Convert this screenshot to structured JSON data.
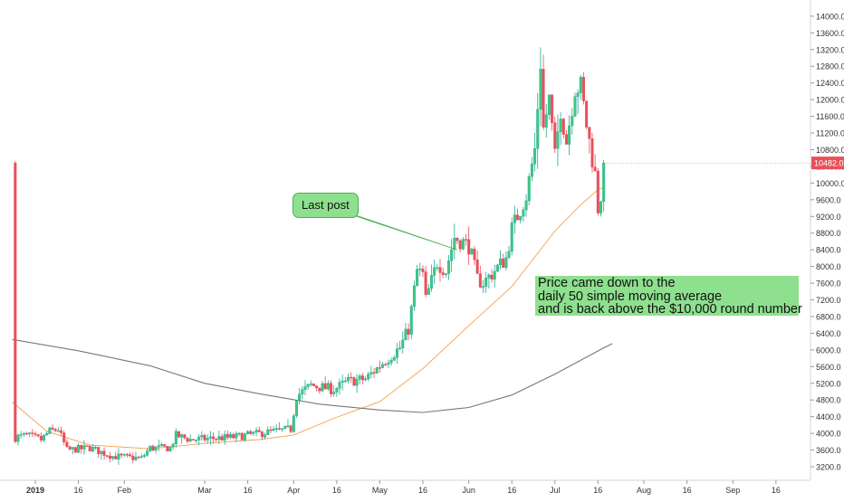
{
  "chart_data": {
    "type": "candlestick",
    "title": "",
    "colors": {
      "up": "#26a69a",
      "up_fill": "#3ec97b",
      "down": "#e8505b",
      "ma50": "#f5a24b",
      "ma200": "#777777",
      "price_tag": "#e8505b",
      "annotation_fill": "#8ee08e"
    },
    "y_axis": {
      "side": "right",
      "ylim": [
        3000,
        14200
      ],
      "ticks": [
        3200,
        3600,
        4000,
        4400,
        4800,
        5200,
        5600,
        6000,
        6400,
        6800,
        7200,
        7600,
        8000,
        8400,
        8800,
        9200,
        9600,
        10000,
        10400,
        10800,
        11200,
        11600,
        12000,
        12400,
        12800,
        13200,
        13600,
        14000
      ],
      "tick_labels": [
        "3200.0",
        "3600.0",
        "4000.0",
        "4400.0",
        "4800.0",
        "5200.0",
        "5600.0",
        "6000.0",
        "6400.0",
        "6800.0",
        "7200.0",
        "7600.0",
        "8000.0",
        "8400.0",
        "8800.0",
        "9200.0",
        "9600.0",
        "10000.0",
        "10400.0",
        "10800.0",
        "11200.0",
        "11600.0",
        "12000.0",
        "12400.0",
        "12800.0",
        "13200.0",
        "13600.0",
        "14000.0"
      ]
    },
    "x_axis": {
      "labels": [
        {
          "label": "2019",
          "date": "2019-01-01",
          "bold": true
        },
        {
          "label": "16",
          "date": "2019-01-16"
        },
        {
          "label": "Feb",
          "date": "2019-02-01"
        },
        {
          "label": "Mar",
          "date": "2019-03-01"
        },
        {
          "label": "16",
          "date": "2019-03-16"
        },
        {
          "label": "Apr",
          "date": "2019-04-01"
        },
        {
          "label": "16",
          "date": "2019-04-16"
        },
        {
          "label": "May",
          "date": "2019-05-01"
        },
        {
          "label": "16",
          "date": "2019-05-16"
        },
        {
          "label": "Jun",
          "date": "2019-06-01"
        },
        {
          "label": "16",
          "date": "2019-06-16"
        },
        {
          "label": "Jul",
          "date": "2019-07-01"
        },
        {
          "label": "16",
          "date": "2019-07-16"
        },
        {
          "label": "Aug",
          "date": "2019-08-01"
        },
        {
          "label": "16",
          "date": "2019-08-16"
        },
        {
          "label": "Sep",
          "date": "2019-09-01"
        },
        {
          "label": "16",
          "date": "2019-09-16"
        }
      ]
    },
    "last_price": {
      "label": "10482.0",
      "value": 10482
    },
    "price_path": [
      {
        "date": "2018-12-25",
        "price": 3900
      },
      {
        "date": "2018-12-29",
        "price": 3950
      },
      {
        "date": "2019-01-03",
        "price": 3850
      },
      {
        "date": "2019-01-06",
        "price": 4050
      },
      {
        "date": "2019-01-09",
        "price": 4100
      },
      {
        "date": "2019-01-12",
        "price": 3600
      },
      {
        "date": "2019-01-20",
        "price": 3650
      },
      {
        "date": "2019-01-28",
        "price": 3450
      },
      {
        "date": "2019-02-07",
        "price": 3400
      },
      {
        "date": "2019-02-10",
        "price": 3650
      },
      {
        "date": "2019-02-17",
        "price": 3650
      },
      {
        "date": "2019-02-19",
        "price": 3950
      },
      {
        "date": "2019-02-24",
        "price": 3850
      },
      {
        "date": "2019-03-10",
        "price": 3900
      },
      {
        "date": "2019-03-31",
        "price": 4100
      },
      {
        "date": "2019-04-02",
        "price": 4900
      },
      {
        "date": "2019-04-07",
        "price": 5150
      },
      {
        "date": "2019-04-15",
        "price": 5050
      },
      {
        "date": "2019-04-20",
        "price": 5250
      },
      {
        "date": "2019-04-26",
        "price": 5300
      },
      {
        "date": "2019-05-03",
        "price": 5750
      },
      {
        "date": "2019-05-08",
        "price": 6050
      },
      {
        "date": "2019-05-11",
        "price": 6500
      },
      {
        "date": "2019-05-14",
        "price": 7900
      },
      {
        "date": "2019-05-16",
        "price": 7800
      },
      {
        "date": "2019-05-17",
        "price": 7200
      },
      {
        "date": "2019-05-21",
        "price": 8100
      },
      {
        "date": "2019-05-24",
        "price": 7900
      },
      {
        "date": "2019-05-27",
        "price": 8700
      },
      {
        "date": "2019-06-01",
        "price": 8500
      },
      {
        "date": "2019-06-04",
        "price": 7700
      },
      {
        "date": "2019-06-06",
        "price": 7600
      },
      {
        "date": "2019-06-10",
        "price": 7900
      },
      {
        "date": "2019-06-14",
        "price": 8200
      },
      {
        "date": "2019-06-16",
        "price": 8900
      },
      {
        "date": "2019-06-21",
        "price": 9700
      },
      {
        "date": "2019-06-24",
        "price": 10800
      },
      {
        "date": "2019-06-26",
        "price": 12900
      },
      {
        "date": "2019-06-27",
        "price": 11300
      },
      {
        "date": "2019-06-29",
        "price": 12000
      },
      {
        "date": "2019-07-01",
        "price": 10600
      },
      {
        "date": "2019-07-03",
        "price": 11800
      },
      {
        "date": "2019-07-05",
        "price": 11000
      },
      {
        "date": "2019-07-08",
        "price": 12300
      },
      {
        "date": "2019-07-10",
        "price": 12300
      },
      {
        "date": "2019-07-12",
        "price": 11400
      },
      {
        "date": "2019-07-15",
        "price": 10200
      },
      {
        "date": "2019-07-16",
        "price": 9400
      },
      {
        "date": "2019-07-17",
        "price": 9700
      },
      {
        "date": "2019-07-18",
        "price": 10482
      }
    ],
    "series": [
      {
        "name": "",
        "type": "line",
        "color": "#f5a24b",
        "points": [
          {
            "x": "2018-12-24",
            "y": 4750
          },
          {
            "x": "2019-01-05",
            "y": 4050
          },
          {
            "x": "2019-01-20",
            "y": 3720
          },
          {
            "x": "2019-02-10",
            "y": 3630
          },
          {
            "x": "2019-03-01",
            "y": 3760
          },
          {
            "x": "2019-03-20",
            "y": 3850
          },
          {
            "x": "2019-04-01",
            "y": 3960
          },
          {
            "x": "2019-04-15",
            "y": 4360
          },
          {
            "x": "2019-05-01",
            "y": 4760
          },
          {
            "x": "2019-05-16",
            "y": 5550
          },
          {
            "x": "2019-06-01",
            "y": 6580
          },
          {
            "x": "2019-06-16",
            "y": 7520
          },
          {
            "x": "2019-07-01",
            "y": 8850
          },
          {
            "x": "2019-07-10",
            "y": 9480
          },
          {
            "x": "2019-07-16",
            "y": 9840
          },
          {
            "x": "2019-07-18",
            "y": 9900
          }
        ]
      },
      {
        "name": "",
        "type": "line",
        "color": "#777777",
        "points": [
          {
            "x": "2018-12-24",
            "y": 6250
          },
          {
            "x": "2019-01-16",
            "y": 5980
          },
          {
            "x": "2019-02-10",
            "y": 5620
          },
          {
            "x": "2019-03-01",
            "y": 5200
          },
          {
            "x": "2019-03-20",
            "y": 4950
          },
          {
            "x": "2019-04-10",
            "y": 4700
          },
          {
            "x": "2019-05-01",
            "y": 4560
          },
          {
            "x": "2019-05-16",
            "y": 4500
          },
          {
            "x": "2019-06-01",
            "y": 4620
          },
          {
            "x": "2019-06-16",
            "y": 4920
          },
          {
            "x": "2019-07-01",
            "y": 5420
          },
          {
            "x": "2019-07-18",
            "y": 6050
          },
          {
            "x": "2019-07-21",
            "y": 6150
          }
        ]
      }
    ],
    "annotations": [
      {
        "id": "last-post",
        "text": "Last post",
        "points_to": {
          "x": "2019-05-28",
          "y": 8400
        }
      },
      {
        "id": "price-note",
        "lines": [
          "Price came down to the",
          "daily 50 simple moving average",
          "and is back above the $10,000 round number"
        ]
      }
    ]
  }
}
